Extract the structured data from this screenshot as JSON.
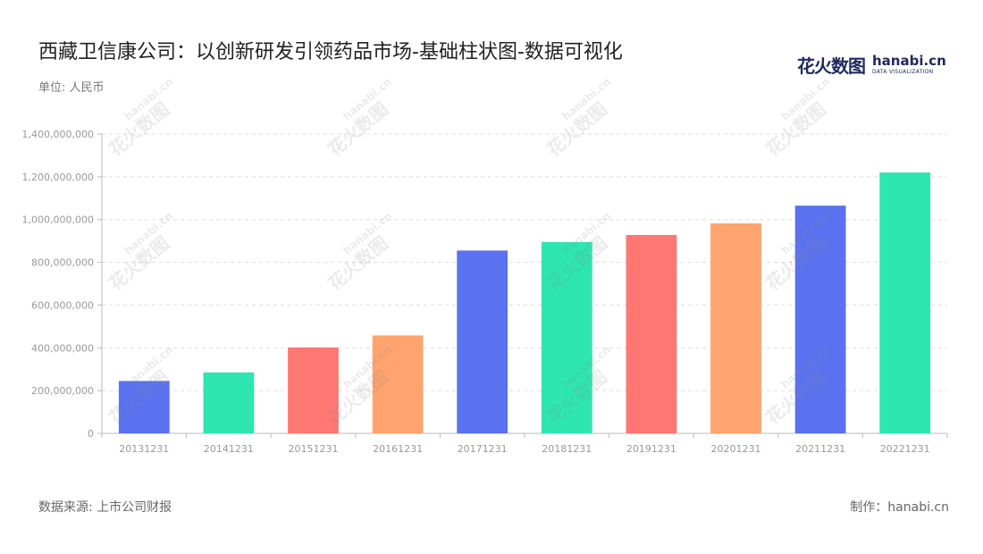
{
  "header": {
    "title": "西藏卫信康公司：以创新研发引领药品市场-基础柱状图-数据可视化",
    "unit_label": "单位: 人民币"
  },
  "logo": {
    "cn_text": "花火数图",
    "en_text": "hanabi.cn",
    "en_sub": "DATA VISUALIZATION"
  },
  "footer": {
    "source": "数据来源: 上市公司财报",
    "maker": "制作：hanabi.cn"
  },
  "watermark": {
    "text_cn": "花火数图",
    "text_en": "hanabi.cn"
  },
  "colors": {
    "palette": [
      "#5a72ef",
      "#2de6b0",
      "#ff7772",
      "#ffa36f"
    ],
    "grid": "#dddddd",
    "axis": "#bbbbbb",
    "tick_text": "#999999"
  },
  "chart_data": {
    "type": "bar",
    "categories": [
      "20131231",
      "20141231",
      "20151231",
      "20161231",
      "20171231",
      "20181231",
      "20191231",
      "20201231",
      "20211231",
      "20221231"
    ],
    "values": [
      245000000,
      285000000,
      402000000,
      458000000,
      855000000,
      895000000,
      928000000,
      982000000,
      1065000000,
      1220000000
    ],
    "ylim": [
      0,
      1400000000
    ],
    "yticks": [
      0,
      200000000,
      400000000,
      600000000,
      800000000,
      1000000000,
      1200000000,
      1400000000
    ],
    "ytick_labels": [
      "0",
      "200,000,000",
      "400,000,000",
      "600,000,000",
      "800,000,000",
      "1,000,000,000",
      "1,200,000,000",
      "1,400,000,000"
    ],
    "grid": true,
    "title": "西藏卫信康公司：以创新研发引领药品市场-基础柱状图-数据可视化",
    "ylabel": "",
    "xlabel": ""
  }
}
